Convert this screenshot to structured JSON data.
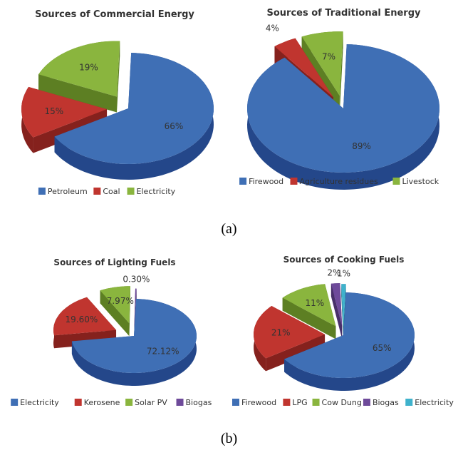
{
  "captions": {
    "a": "(a)",
    "b": "(b)"
  },
  "colors": {
    "blue": "#3f6fb5",
    "blue_side": "#24478a",
    "red": "#c0352f",
    "red_side": "#85211d",
    "green": "#8ab53e",
    "green_side": "#5d7f23",
    "purple": "#6e4a9a",
    "purple_side": "#48306a",
    "cyan": "#3fb2cc",
    "cyan_side": "#267890"
  },
  "chart_data": [
    {
      "type": "pie",
      "title": "Sources of Commercial Energy",
      "slices": [
        {
          "label": "Petroleum",
          "value": 66,
          "display": "66%",
          "color": "blue"
        },
        {
          "label": "Coal",
          "value": 15,
          "display": "15%",
          "color": "red"
        },
        {
          "label": "Electricity",
          "value": 19,
          "display": "19%",
          "color": "green"
        }
      ],
      "legend_position": "bottom"
    },
    {
      "type": "pie",
      "title": "Sources of Traditional Energy",
      "slices": [
        {
          "label": "Firewood",
          "value": 89,
          "display": "89%",
          "color": "blue"
        },
        {
          "label": "Agriculture residues",
          "value": 4,
          "display": "4%",
          "color": "red"
        },
        {
          "label": "Livestock",
          "value": 7,
          "display": "7%",
          "color": "green"
        }
      ],
      "legend_position": "bottom"
    },
    {
      "type": "pie",
      "title": "Sources of Lighting Fuels",
      "slices": [
        {
          "label": "Electricity",
          "value": 72.12,
          "display": "72.12%",
          "color": "blue"
        },
        {
          "label": "Kerosene",
          "value": 19.6,
          "display": "19.60%",
          "color": "red"
        },
        {
          "label": "Solar PV",
          "value": 7.97,
          "display": "7.97%",
          "color": "green"
        },
        {
          "label": "Biogas",
          "value": 0.3,
          "display": "0.30%",
          "color": "purple"
        }
      ],
      "legend_position": "bottom"
    },
    {
      "type": "pie",
      "title": "Sources of Cooking Fuels",
      "slices": [
        {
          "label": "Firewood",
          "value": 65,
          "display": "65%",
          "color": "blue"
        },
        {
          "label": "LPG",
          "value": 21,
          "display": "21%",
          "color": "red"
        },
        {
          "label": "Cow Dung",
          "value": 11,
          "display": "11%",
          "color": "green"
        },
        {
          "label": "Biogas",
          "value": 2,
          "display": "2%",
          "color": "purple"
        },
        {
          "label": "Electricity",
          "value": 1,
          "display": "1%",
          "color": "cyan"
        }
      ],
      "legend_position": "bottom"
    }
  ]
}
